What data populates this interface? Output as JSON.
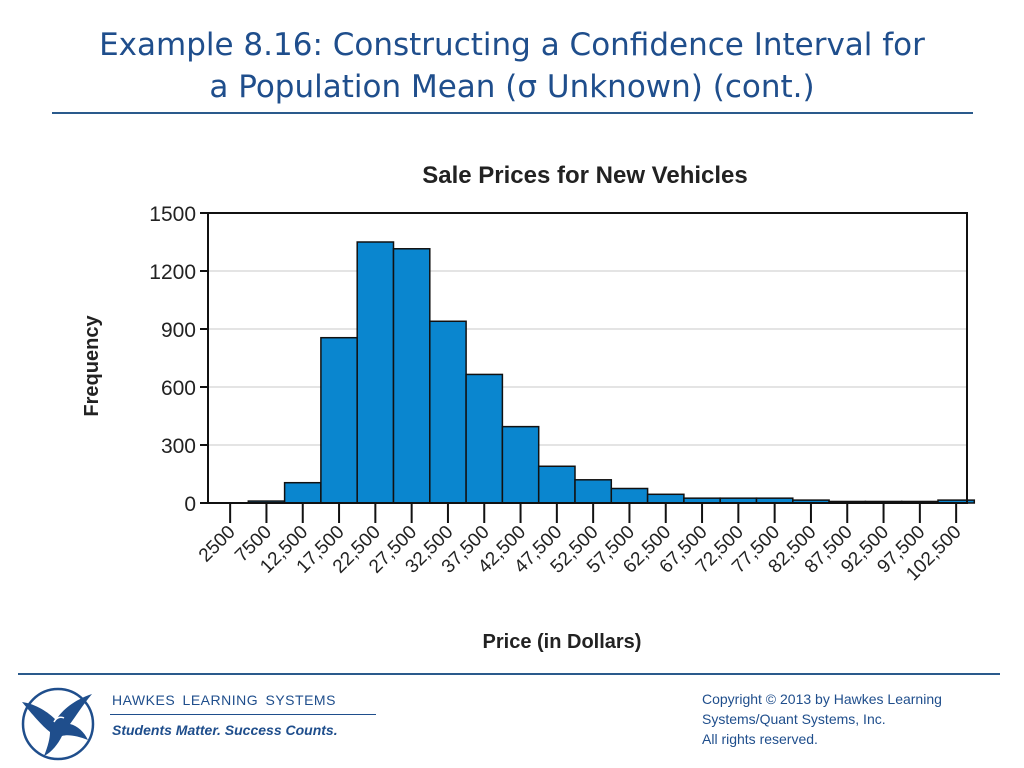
{
  "slide": {
    "title_line1": "Example 8.16: Constructing a Confidence Interval for",
    "title_line2": "a Population Mean (σ Unknown) (cont.)"
  },
  "chart_data": {
    "type": "bar",
    "title": "Sale Prices for New Vehicles",
    "xlabel": "Price (in Dollars)",
    "ylabel": "Frequency",
    "categories": [
      "2500",
      "7500",
      "12,500",
      "17,500",
      "22,500",
      "27,500",
      "32,500",
      "37,500",
      "42,500",
      "47,500",
      "52,500",
      "57,500",
      "62,500",
      "67,500",
      "72,500",
      "77,500",
      "82,500",
      "87,500",
      "92,500",
      "97,500",
      "102,500"
    ],
    "values": [
      0,
      10,
      105,
      855,
      1350,
      1315,
      940,
      665,
      395,
      190,
      120,
      75,
      45,
      25,
      25,
      25,
      15,
      8,
      8,
      8,
      15
    ],
    "yticks": [
      0,
      300,
      600,
      900,
      1200,
      1500
    ],
    "ylim": [
      0,
      1500
    ],
    "grid": true,
    "bar_color": "#0a86cf"
  },
  "footer": {
    "brand": "HAWKES  LEARNING  SYSTEMS",
    "tagline": "Students Matter. Success Counts.",
    "copyright_line1": "Copyright © 2013 by Hawkes Learning",
    "copyright_line2": "Systems/Quant Systems, Inc.",
    "copyright_line3": "All rights reserved."
  }
}
